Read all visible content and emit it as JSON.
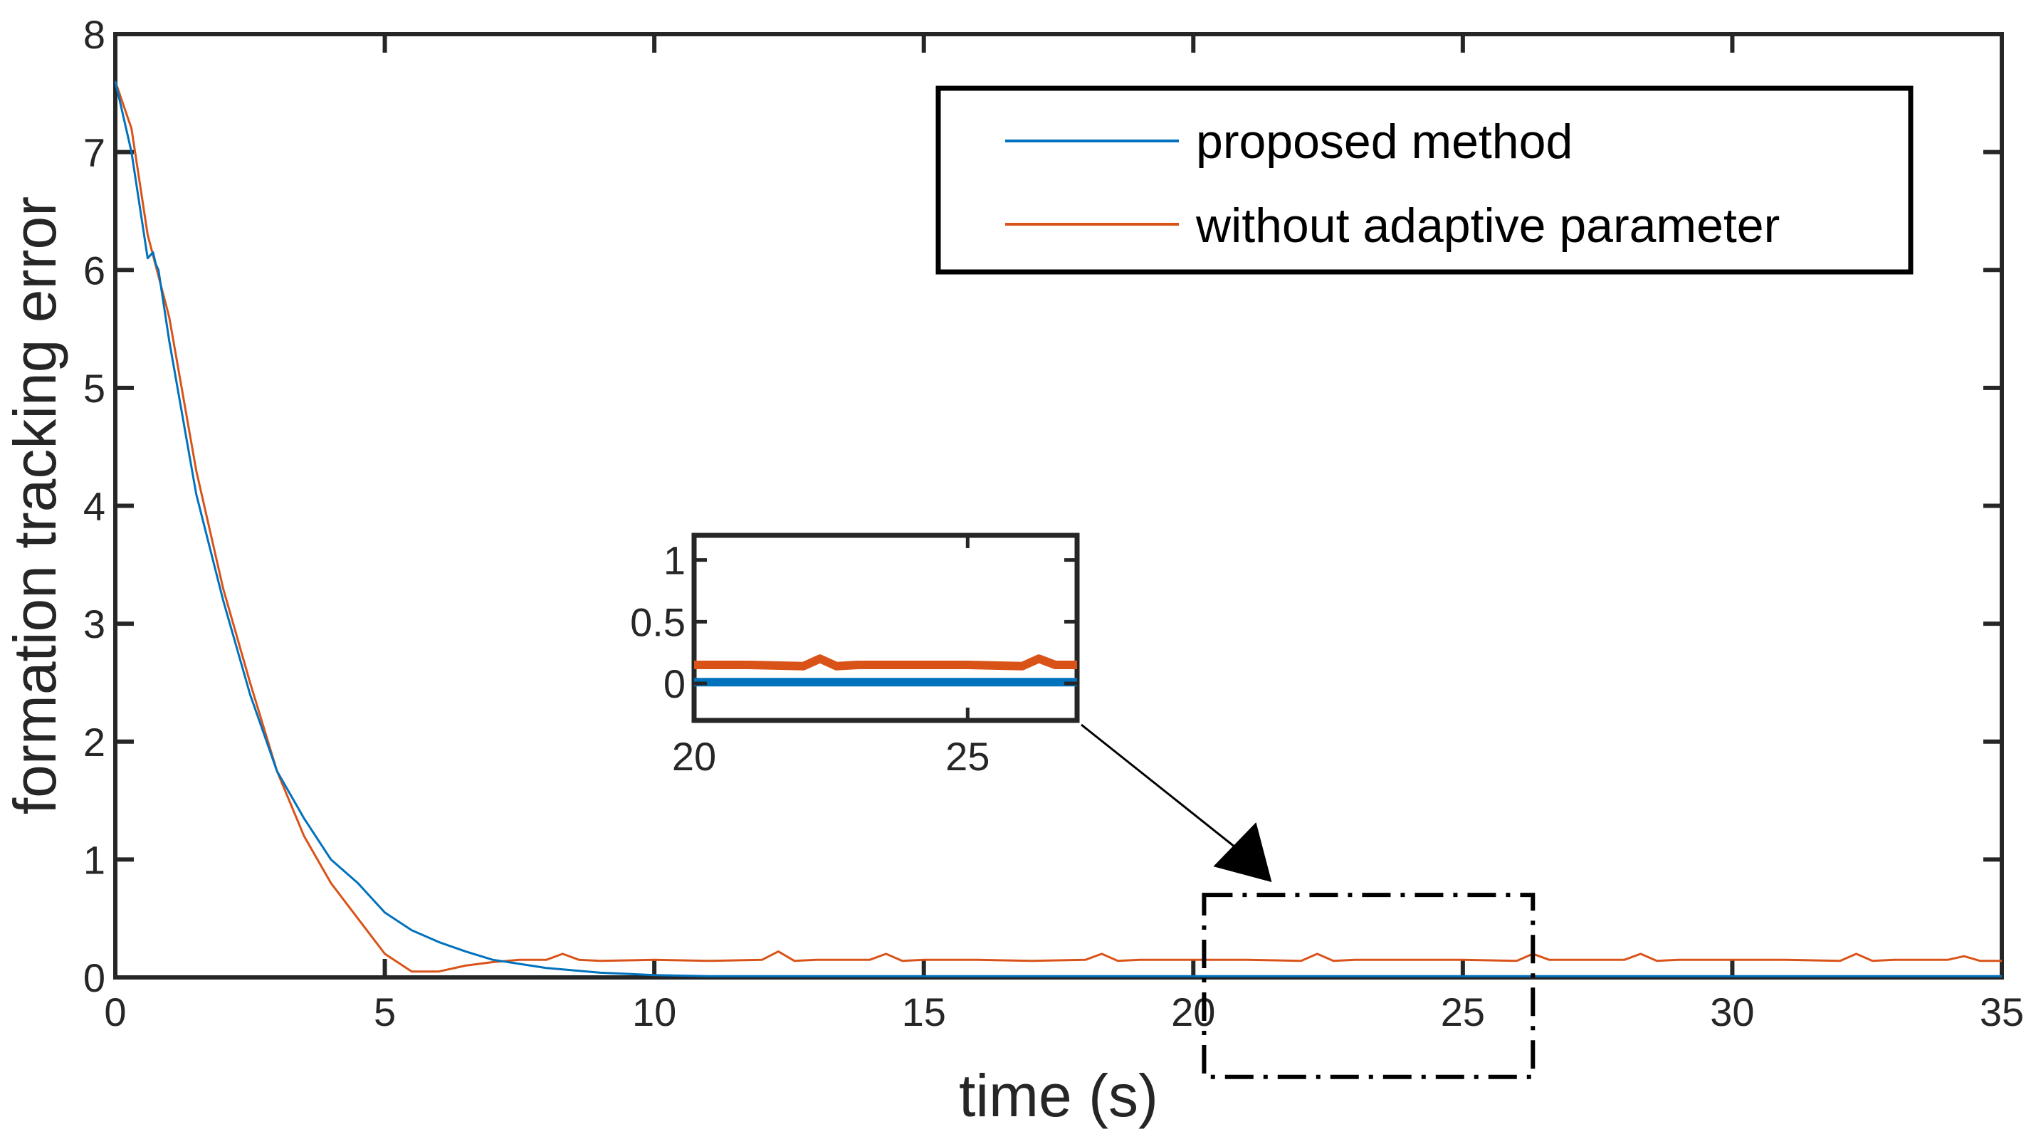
{
  "chart_data": {
    "type": "line",
    "title": "",
    "xlabel": "time (s)",
    "ylabel": "formation tracking error",
    "xlim": [
      0,
      35
    ],
    "ylim": [
      0,
      8
    ],
    "xticks": [
      0,
      5,
      10,
      15,
      20,
      25,
      30,
      35
    ],
    "yticks": [
      0,
      1,
      2,
      3,
      4,
      5,
      6,
      7,
      8
    ],
    "grid": false,
    "legend": "top-right",
    "series": [
      {
        "name": "proposed method",
        "color": "#0072BD",
        "x": [
          0,
          0.3,
          0.6,
          0.7,
          0.75,
          0.8,
          1.0,
          1.5,
          2.0,
          2.5,
          3.0,
          3.5,
          4.0,
          4.5,
          5.0,
          5.5,
          6.0,
          6.5,
          7.0,
          8.0,
          9.0,
          10.0,
          11.0,
          12.0,
          14.0,
          16.0,
          18.0,
          20.0,
          22.0,
          24.0,
          26.0,
          28.0,
          30.0,
          32.0,
          35.0
        ],
        "y": [
          7.6,
          7.0,
          6.1,
          6.15,
          6.05,
          6.0,
          5.4,
          4.1,
          3.2,
          2.4,
          1.75,
          1.35,
          1.0,
          0.8,
          0.55,
          0.4,
          0.3,
          0.22,
          0.15,
          0.08,
          0.04,
          0.02,
          0.01,
          0.01,
          0.01,
          0.01,
          0.01,
          0.01,
          0.01,
          0.01,
          0.01,
          0.01,
          0.01,
          0.01,
          0.01
        ]
      },
      {
        "name": "without adaptive parameter",
        "color": "#D95319",
        "x": [
          0,
          0.3,
          0.6,
          1.0,
          1.5,
          2.0,
          2.5,
          3.0,
          3.5,
          4.0,
          4.5,
          5.0,
          5.5,
          6.0,
          6.5,
          7.0,
          7.5,
          8.0,
          8.3,
          8.6,
          9.0,
          10.0,
          11.0,
          12.0,
          12.3,
          12.6,
          13.0,
          14.0,
          14.3,
          14.6,
          15.0,
          16.0,
          17.0,
          18.0,
          18.3,
          18.6,
          19.0,
          20.0,
          21.0,
          22.0,
          22.3,
          22.6,
          23.0,
          24.0,
          25.0,
          26.0,
          26.3,
          26.6,
          27.0,
          28.0,
          28.3,
          28.6,
          29.0,
          30.0,
          31.0,
          32.0,
          32.3,
          32.6,
          33.0,
          34.0,
          34.3,
          34.6,
          35.0
        ],
        "y": [
          7.6,
          7.2,
          6.3,
          5.6,
          4.3,
          3.3,
          2.5,
          1.75,
          1.2,
          0.8,
          0.5,
          0.2,
          0.05,
          0.05,
          0.1,
          0.13,
          0.15,
          0.15,
          0.2,
          0.15,
          0.14,
          0.15,
          0.14,
          0.15,
          0.22,
          0.14,
          0.15,
          0.15,
          0.2,
          0.14,
          0.15,
          0.15,
          0.14,
          0.15,
          0.2,
          0.14,
          0.15,
          0.15,
          0.15,
          0.14,
          0.2,
          0.14,
          0.15,
          0.15,
          0.15,
          0.14,
          0.2,
          0.15,
          0.15,
          0.15,
          0.2,
          0.14,
          0.15,
          0.15,
          0.15,
          0.14,
          0.2,
          0.14,
          0.15,
          0.15,
          0.18,
          0.14,
          0.14
        ]
      }
    ],
    "inset": {
      "xlim": [
        20,
        27
      ],
      "ylim": [
        -0.3,
        1.2
      ],
      "xticks": [
        20,
        25
      ],
      "yticks": [
        0,
        0.5,
        1
      ],
      "ytick_labels": [
        "0",
        "0.5",
        "1"
      ],
      "zoom_region": {
        "x": [
          20.2,
          26.3
        ],
        "y": [
          -0.3,
          0.7
        ]
      }
    }
  }
}
